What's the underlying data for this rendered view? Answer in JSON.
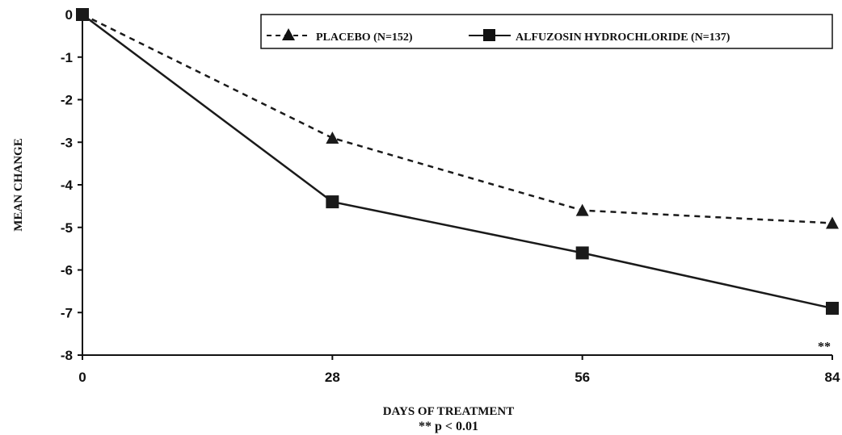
{
  "chart_data": {
    "type": "line",
    "x": [
      0,
      28,
      56,
      84
    ],
    "x_ticks": [
      "0",
      "28",
      "56",
      "84"
    ],
    "xlabel": "DAYS OF TREATMENT",
    "ylabel": "MEAN CHANGE",
    "ylim": [
      -8,
      0
    ],
    "y_ticks": [
      "0",
      "-1",
      "-2",
      "-3",
      "-4",
      "-5",
      "-6",
      "-7",
      "-8"
    ],
    "grid": false,
    "legend_position": "top-right",
    "series": [
      {
        "name": "PLACEBO (N=152)",
        "values": [
          0,
          -2.9,
          -4.6,
          -4.9
        ],
        "marker": "triangle",
        "line_style": "dashed",
        "color": "#1a1a1a"
      },
      {
        "name": "ALFUZOSIN HYDROCHLORIDE (N=137)",
        "values": [
          0,
          -4.4,
          -5.6,
          -6.9
        ],
        "marker": "square",
        "line_style": "solid",
        "color": "#1a1a1a"
      }
    ],
    "annotations": [
      {
        "text": "**",
        "x": 84,
        "y": -7.8
      }
    ],
    "footnote": "** p < 0.01"
  }
}
